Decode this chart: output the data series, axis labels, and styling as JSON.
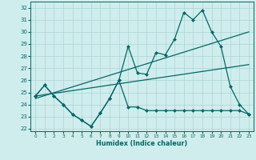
{
  "xlabel": "Humidex (Indice chaleur)",
  "x_ticks": [
    0,
    1,
    2,
    3,
    4,
    5,
    6,
    7,
    8,
    9,
    10,
    11,
    12,
    13,
    14,
    15,
    16,
    17,
    18,
    19,
    20,
    21,
    22,
    23
  ],
  "y_ticks": [
    22,
    23,
    24,
    25,
    26,
    27,
    28,
    29,
    30,
    31,
    32
  ],
  "xlim": [
    -0.5,
    23.5
  ],
  "ylim": [
    21.8,
    32.5
  ],
  "line_high_x": [
    0,
    1,
    2,
    3,
    4,
    5,
    6,
    7,
    8,
    9,
    10,
    11,
    12,
    13,
    14,
    15,
    16,
    17,
    18,
    19,
    20,
    21,
    22,
    23
  ],
  "line_high_y": [
    24.7,
    25.6,
    24.7,
    24.0,
    23.2,
    22.7,
    22.2,
    23.3,
    24.5,
    26.0,
    28.8,
    26.6,
    26.5,
    28.3,
    28.1,
    29.4,
    31.6,
    31.0,
    31.8,
    30.0,
    28.8,
    25.5,
    24.0,
    23.2
  ],
  "line_low_x": [
    0,
    1,
    2,
    3,
    4,
    5,
    6,
    7,
    8,
    9,
    10,
    11,
    12,
    13,
    14,
    15,
    16,
    17,
    18,
    19,
    20,
    21,
    22,
    23
  ],
  "line_low_y": [
    24.7,
    25.6,
    24.7,
    24.0,
    23.2,
    22.7,
    22.2,
    23.3,
    24.5,
    26.0,
    23.8,
    23.8,
    23.5,
    23.5,
    23.5,
    23.5,
    23.5,
    23.5,
    23.5,
    23.5,
    23.5,
    23.5,
    23.5,
    23.2
  ],
  "trend1_x": [
    0,
    23
  ],
  "trend1_y": [
    24.7,
    27.3
  ],
  "trend2_x": [
    0,
    23
  ],
  "trend2_y": [
    24.5,
    30.0
  ],
  "color": "#006868",
  "bg_color": "#d0eded",
  "grid_color": "#aad4d4"
}
